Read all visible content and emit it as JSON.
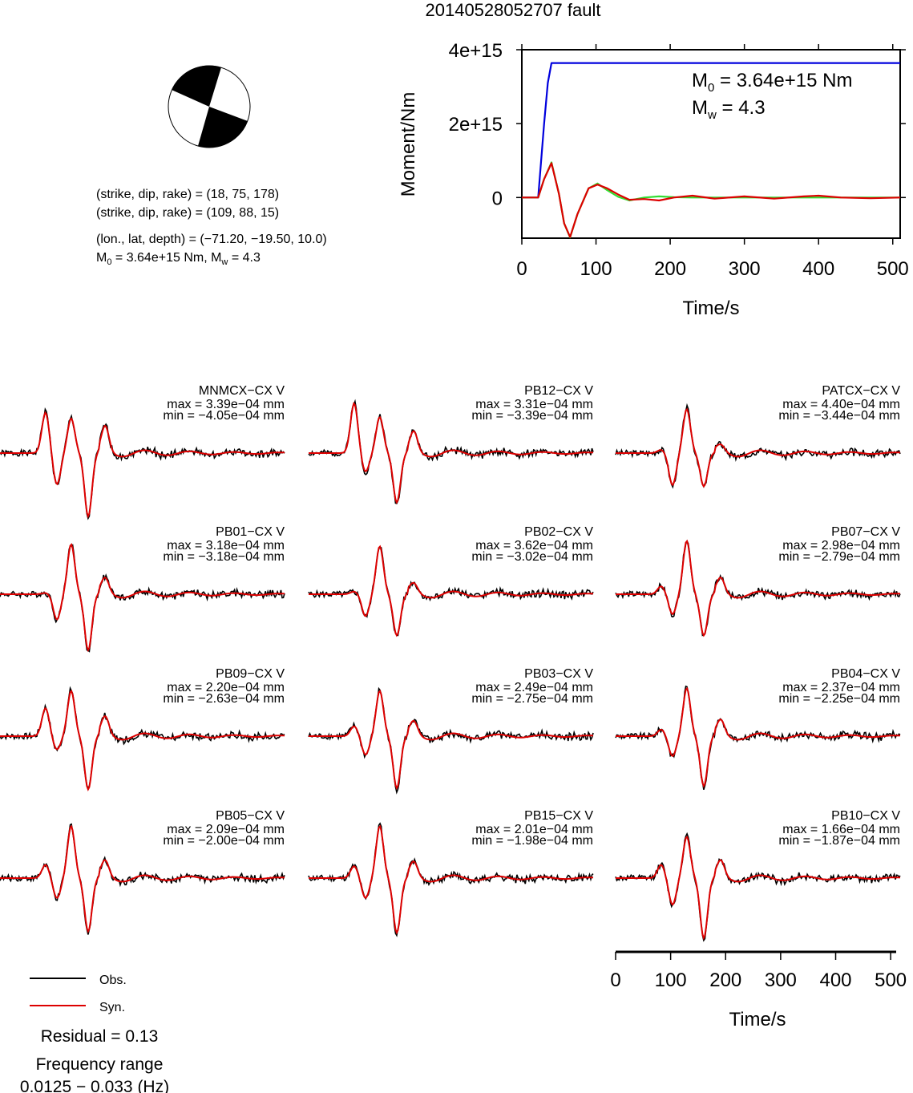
{
  "title": "20140528052707 fault",
  "mechanism": {
    "plane1": "(strike, dip, rake) = (18, 75, 178)",
    "plane2": "(strike, dip, rake) = (109, 88, 15)",
    "location": "(lon., lat, depth) = (−71.20, −19.50, 10.0)",
    "m0_text": "M",
    "m0_sub": "0",
    "m0_value": " = 3.64e+15 Nm, M",
    "mw_sub": "w",
    "mw_value": " = 4.3"
  },
  "colors": {
    "observed": "#000000",
    "synthetic": "#dd0000",
    "moment": "#0000dd",
    "green": "#33dd33",
    "beachball": "#000000"
  },
  "chart_data": [
    {
      "type": "line",
      "title": "",
      "xlabel": "Time/s",
      "ylabel": "Moment/Nm",
      "xlim": [
        0,
        510
      ],
      "ylim": [
        -1100000000000000.0,
        4000000000000000.0
      ],
      "xticks": [
        "0",
        "100",
        "200",
        "300",
        "400",
        "500"
      ],
      "yticks": [
        "0",
        "2e+15",
        "4e+15"
      ],
      "annotation": {
        "m0_label": "M",
        "m0_sub": "0",
        "m0_value": " = 3.64e+15 Nm",
        "mw_label": "M",
        "mw_sub": "w",
        "mw_value": " = 4.3"
      },
      "series": [
        {
          "color": "#0000dd",
          "x": [
            0,
            22,
            30,
            35,
            40,
            510
          ],
          "y": [
            0,
            0,
            2000000000000000.0,
            3100000000000000.0,
            3640000000000000.0,
            3640000000000000.0
          ]
        },
        {
          "color": "#33dd33",
          "x": [
            0,
            22,
            30,
            40,
            50,
            57,
            65,
            75,
            90,
            102,
            115,
            130,
            145,
            165,
            185,
            205,
            230,
            260,
            300,
            350,
            400,
            450,
            510
          ],
          "y": [
            0,
            0,
            500000000000000.0,
            950000000000000.0,
            100000000000000.0,
            -700000000000000.0,
            -1080000000000000.0,
            -450000000000000.0,
            250000000000000.0,
            380000000000000.0,
            200000000000000.0,
            20000000000000.0,
            -80000000000000.0,
            0.0,
            30000000000000.0,
            10000000000000.0,
            0.0,
            0.0,
            0.0,
            0.0,
            0.0,
            0.0,
            0.0
          ]
        },
        {
          "color": "#dd0000",
          "x": [
            0,
            22,
            30,
            40,
            50,
            57,
            65,
            75,
            90,
            102,
            115,
            130,
            145,
            165,
            185,
            205,
            230,
            260,
            300,
            340,
            380,
            400,
            430,
            470,
            510
          ],
          "y": [
            0,
            0,
            500000000000000.0,
            930000000000000.0,
            100000000000000.0,
            -700000000000000.0,
            -1070000000000000.0,
            -450000000000000.0,
            250000000000000.0,
            350000000000000.0,
            250000000000000.0,
            80000000000000.0,
            -60000000000000.0,
            -40000000000000.0,
            -80000000000000.0,
            0.0,
            50000000000000.0,
            -30000000000000.0,
            30000000000000.0,
            -30000000000000.0,
            30000000000000.0,
            50000000000000.0,
            0.0,
            -20000000000000.0,
            0.0
          ]
        }
      ]
    },
    {
      "type": "line",
      "title": "",
      "xlabel": "Time/s",
      "ylabel": "",
      "xlim": [
        0,
        510
      ],
      "xticks": [
        "0",
        "100",
        "200",
        "300",
        "400",
        "500"
      ],
      "legend": [
        "Obs.",
        "Syn."
      ],
      "residual": "Residual = 0.13",
      "freq_label": "Frequency range",
      "freq_value": "0.0125 − 0.033 (Hz)",
      "stations": [
        {
          "name": "MNMCX−CX V",
          "max": "max = 3.39e−04 mm",
          "min": "min = −4.05e−04 mm",
          "maxv": 3.39,
          "minv": -4.05,
          "p1": 0.61,
          "n1": -0.47,
          "p2": 0.52,
          "n2": -0.95,
          "tail": 0.36,
          "seed": 1
        },
        {
          "name": "PB12−CX V",
          "max": "max = 3.31e−04 mm",
          "min": "min = −3.39e−04 mm",
          "maxv": 3.31,
          "minv": -3.39,
          "p1": 0.75,
          "n1": -0.28,
          "p2": 0.54,
          "n2": -0.74,
          "tail": 0.28,
          "seed": 2
        },
        {
          "name": "PATCX−CX V",
          "max": "max = 4.40e−04 mm",
          "min": "min = −3.44e−04 mm",
          "maxv": 4.4,
          "minv": -3.44,
          "p1": 0.05,
          "n1": -0.48,
          "p2": 0.66,
          "n2": -0.5,
          "tail": 0.08,
          "seed": 3
        },
        {
          "name": "PB01−CX V",
          "max": "max = 3.18e−04 mm",
          "min": "min = −3.18e−04 mm",
          "maxv": 3.18,
          "minv": -3.18,
          "p1": 0.02,
          "n1": -0.38,
          "p2": 0.75,
          "n2": -0.84,
          "tail": 0.2,
          "seed": 4
        },
        {
          "name": "PB02−CX V",
          "max": "max = 3.62e−04 mm",
          "min": "min = −3.02e−04 mm",
          "maxv": 3.62,
          "minv": -3.02,
          "p1": 0.04,
          "n1": -0.33,
          "p2": 0.72,
          "n2": -0.62,
          "tail": 0.12,
          "seed": 5
        },
        {
          "name": "PB07−CX V",
          "max": "max = 2.98e−04 mm",
          "min": "min = −2.79e−04 mm",
          "maxv": 2.98,
          "minv": -2.79,
          "p1": 0.12,
          "n1": -0.3,
          "p2": 0.8,
          "n2": -0.62,
          "tail": 0.2,
          "seed": 6
        },
        {
          "name": "PB09−CX V",
          "max": "max = 2.20e−04 mm",
          "min": "min = −2.63e−04 mm",
          "maxv": 2.2,
          "minv": -2.63,
          "p1": 0.42,
          "n1": -0.2,
          "p2": 0.68,
          "n2": -0.8,
          "tail": 0.25,
          "seed": 7
        },
        {
          "name": "PB03−CX V",
          "max": "max = 2.49e−04 mm",
          "min": "min = −2.75e−04 mm",
          "maxv": 2.49,
          "minv": -2.75,
          "p1": 0.15,
          "n1": -0.28,
          "p2": 0.68,
          "n2": -0.78,
          "tail": 0.18,
          "seed": 8
        },
        {
          "name": "PB04−CX V",
          "max": "max = 2.37e−04 mm",
          "min": "min = −2.25e−04 mm",
          "maxv": 2.37,
          "minv": -2.25,
          "p1": 0.1,
          "n1": -0.3,
          "p2": 0.72,
          "n2": -0.75,
          "tail": 0.2,
          "seed": 9
        },
        {
          "name": "PB05−CX V",
          "max": "max = 2.09e−04 mm",
          "min": "min = −2.00e−04 mm",
          "maxv": 2.09,
          "minv": -2.0,
          "p1": 0.2,
          "n1": -0.3,
          "p2": 0.78,
          "n2": -0.8,
          "tail": 0.22,
          "seed": 10
        },
        {
          "name": "PB15−CX V",
          "max": "max = 2.01e−04 mm",
          "min": "min = −1.98e−04 mm",
          "maxv": 2.01,
          "minv": -1.98,
          "p1": 0.18,
          "n1": -0.3,
          "p2": 0.78,
          "n2": -0.82,
          "tail": 0.2,
          "seed": 11
        },
        {
          "name": "PB10−CX V",
          "max": "max = 1.66e−04 mm",
          "min": "min = −1.87e−04 mm",
          "maxv": 1.66,
          "minv": -1.87,
          "p1": 0.2,
          "n1": -0.4,
          "p2": 0.62,
          "n2": -0.9,
          "tail": 0.22,
          "seed": 12
        }
      ]
    }
  ]
}
